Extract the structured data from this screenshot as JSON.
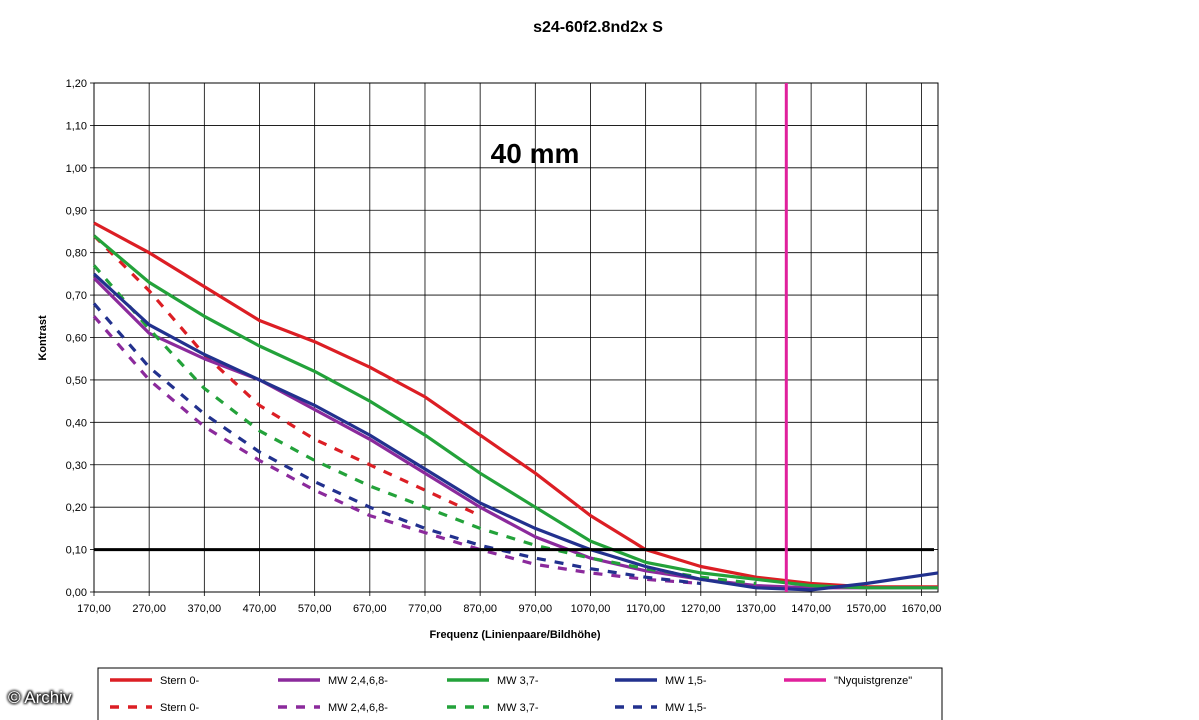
{
  "credit": "© Archiv",
  "chart_data": {
    "type": "line",
    "title": "s24-60f2.8nd2x S",
    "annotation": "40 mm",
    "xlabel": "Frequenz (Linienpaare/Bildhöhe)",
    "ylabel": "Kontrast",
    "xlim": [
      170,
      1700
    ],
    "ylim": [
      0,
      1.2
    ],
    "x_ticks": [
      "170,00",
      "270,00",
      "370,00",
      "470,00",
      "570,00",
      "670,00",
      "770,00",
      "870,00",
      "970,00",
      "1070,00",
      "1170,00",
      "1270,00",
      "1370,00",
      "1470,00",
      "1570,00",
      "1670,00"
    ],
    "y_ticks": [
      "0,00",
      "0,10",
      "0,20",
      "0,30",
      "0,40",
      "0,50",
      "0,60",
      "0,70",
      "0,80",
      "0,90",
      "1,00",
      "1,10",
      "1,20"
    ],
    "grid": true,
    "legend_position": "bottom",
    "reference_lines": [
      {
        "orientation": "horizontal",
        "value": 0.1,
        "color": "#000000"
      },
      {
        "orientation": "vertical",
        "value": 1425,
        "color": "#e0209c"
      }
    ],
    "series": [
      {
        "name": "Stern 0-",
        "color": "#dc1e24",
        "dash": false,
        "points": [
          [
            170,
            0.87
          ],
          [
            270,
            0.8
          ],
          [
            370,
            0.72
          ],
          [
            470,
            0.64
          ],
          [
            570,
            0.59
          ],
          [
            670,
            0.53
          ],
          [
            770,
            0.46
          ],
          [
            870,
            0.37
          ],
          [
            970,
            0.28
          ],
          [
            1070,
            0.18
          ],
          [
            1170,
            0.1
          ],
          [
            1270,
            0.06
          ],
          [
            1370,
            0.035
          ],
          [
            1470,
            0.02
          ],
          [
            1570,
            0.012
          ],
          [
            1700,
            0.012
          ]
        ]
      },
      {
        "name": "Stern 0-",
        "color": "#dc1e24",
        "dash": true,
        "points": [
          [
            170,
            0.84
          ],
          [
            270,
            0.71
          ],
          [
            370,
            0.56
          ],
          [
            470,
            0.44
          ],
          [
            570,
            0.36
          ],
          [
            670,
            0.3
          ],
          [
            770,
            0.24
          ],
          [
            870,
            0.18
          ]
        ]
      },
      {
        "name": "MW 2,4,6,8-",
        "color": "#8b2a9c",
        "dash": false,
        "points": [
          [
            170,
            0.74
          ],
          [
            270,
            0.61
          ],
          [
            370,
            0.55
          ],
          [
            470,
            0.5
          ],
          [
            570,
            0.43
          ],
          [
            670,
            0.36
          ],
          [
            770,
            0.28
          ],
          [
            870,
            0.2
          ],
          [
            970,
            0.13
          ],
          [
            1070,
            0.08
          ],
          [
            1170,
            0.05
          ],
          [
            1270,
            0.03
          ],
          [
            1370,
            0.015
          ],
          [
            1470,
            0.01
          ],
          [
            1570,
            0.01
          ],
          [
            1700,
            0.01
          ]
        ]
      },
      {
        "name": "MW 2,4,6,8-",
        "color": "#8b2a9c",
        "dash": true,
        "points": [
          [
            170,
            0.65
          ],
          [
            270,
            0.5
          ],
          [
            370,
            0.39
          ],
          [
            470,
            0.31
          ],
          [
            570,
            0.24
          ],
          [
            670,
            0.18
          ],
          [
            770,
            0.14
          ],
          [
            870,
            0.1
          ],
          [
            970,
            0.065
          ],
          [
            1070,
            0.045
          ],
          [
            1170,
            0.03
          ],
          [
            1270,
            0.02
          ]
        ]
      },
      {
        "name": "MW 3,7-",
        "color": "#23a23a",
        "dash": false,
        "points": [
          [
            170,
            0.84
          ],
          [
            270,
            0.73
          ],
          [
            370,
            0.65
          ],
          [
            470,
            0.58
          ],
          [
            570,
            0.52
          ],
          [
            670,
            0.45
          ],
          [
            770,
            0.37
          ],
          [
            870,
            0.28
          ],
          [
            970,
            0.2
          ],
          [
            1070,
            0.12
          ],
          [
            1170,
            0.07
          ],
          [
            1270,
            0.045
          ],
          [
            1370,
            0.03
          ],
          [
            1470,
            0.015
          ],
          [
            1570,
            0.01
          ],
          [
            1700,
            0.01
          ]
        ]
      },
      {
        "name": "MW 3,7-",
        "color": "#23a23a",
        "dash": true,
        "points": [
          [
            170,
            0.77
          ],
          [
            270,
            0.62
          ],
          [
            370,
            0.48
          ],
          [
            470,
            0.38
          ],
          [
            570,
            0.31
          ],
          [
            670,
            0.25
          ],
          [
            770,
            0.2
          ],
          [
            870,
            0.15
          ],
          [
            970,
            0.11
          ],
          [
            1070,
            0.08
          ],
          [
            1170,
            0.055
          ],
          [
            1270,
            0.035
          ],
          [
            1370,
            0.02
          ]
        ]
      },
      {
        "name": "MW 1,5-",
        "color": "#22318e",
        "dash": false,
        "points": [
          [
            170,
            0.75
          ],
          [
            270,
            0.63
          ],
          [
            370,
            0.56
          ],
          [
            470,
            0.5
          ],
          [
            570,
            0.44
          ],
          [
            670,
            0.37
          ],
          [
            770,
            0.29
          ],
          [
            870,
            0.21
          ],
          [
            970,
            0.15
          ],
          [
            1070,
            0.1
          ],
          [
            1170,
            0.06
          ],
          [
            1270,
            0.03
          ],
          [
            1370,
            0.01
          ],
          [
            1470,
            0.005
          ],
          [
            1570,
            0.02
          ],
          [
            1700,
            0.045
          ]
        ]
      },
      {
        "name": "MW 1,5-",
        "color": "#22318e",
        "dash": true,
        "points": [
          [
            170,
            0.68
          ],
          [
            270,
            0.53
          ],
          [
            370,
            0.42
          ],
          [
            470,
            0.33
          ],
          [
            570,
            0.26
          ],
          [
            670,
            0.2
          ],
          [
            770,
            0.15
          ],
          [
            870,
            0.11
          ],
          [
            970,
            0.08
          ],
          [
            1070,
            0.055
          ],
          [
            1170,
            0.035
          ],
          [
            1270,
            0.02
          ]
        ]
      },
      {
        "name": "\"Nyquistgrenze\"",
        "color": "#e0209c",
        "dash": false,
        "points": []
      }
    ],
    "legend": [
      [
        {
          "label": "Stern 0-",
          "color": "#dc1e24",
          "dash": false
        },
        {
          "label": "MW 2,4,6,8-",
          "color": "#8b2a9c",
          "dash": false
        },
        {
          "label": "MW 3,7-",
          "color": "#23a23a",
          "dash": false
        },
        {
          "label": "MW 1,5-",
          "color": "#22318e",
          "dash": false
        },
        {
          "label": "\"Nyquistgrenze\"",
          "color": "#e0209c",
          "dash": false
        }
      ],
      [
        {
          "label": "Stern 0-",
          "color": "#dc1e24",
          "dash": true
        },
        {
          "label": "MW 2,4,6,8-",
          "color": "#8b2a9c",
          "dash": true
        },
        {
          "label": "MW 3,7-",
          "color": "#23a23a",
          "dash": true
        },
        {
          "label": "MW 1,5-",
          "color": "#22318e",
          "dash": true
        }
      ]
    ]
  }
}
